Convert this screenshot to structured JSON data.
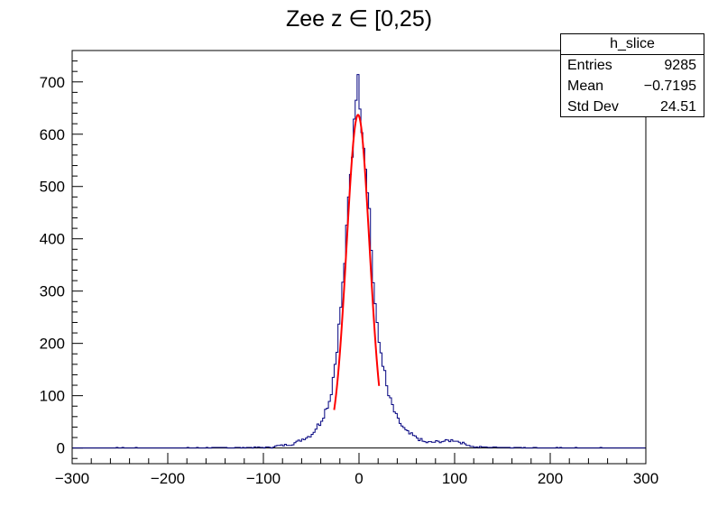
{
  "chart_data": {
    "type": "histogram",
    "title": "Zee z ∈ [0,25)",
    "xlabel": "",
    "ylabel": "",
    "xlim": [
      -300,
      300
    ],
    "ylim": [
      -30,
      760
    ],
    "x_ticks": [
      -300,
      -200,
      -100,
      0,
      100,
      200,
      300
    ],
    "x_tick_labels": [
      "−300",
      "−200",
      "−100",
      "0",
      "100",
      "200",
      "300"
    ],
    "y_ticks": [
      0,
      100,
      200,
      300,
      400,
      500,
      600,
      700
    ],
    "y_tick_labels": [
      "0",
      "100",
      "200",
      "300",
      "400",
      "500",
      "600",
      "700"
    ],
    "histogram": {
      "name": "h_slice",
      "color": "#00007f",
      "bin_width": 2,
      "x_start": -300,
      "x_end": 300,
      "peaks": [
        {
          "x": -90,
          "y": 3
        },
        {
          "x": -70,
          "y": 7
        },
        {
          "x": -50,
          "y": 25
        },
        {
          "x": -40,
          "y": 50
        },
        {
          "x": -30,
          "y": 95
        },
        {
          "x": -24,
          "y": 175
        },
        {
          "x": -20,
          "y": 250
        },
        {
          "x": -16,
          "y": 330
        },
        {
          "x": -12,
          "y": 440
        },
        {
          "x": -10,
          "y": 505
        },
        {
          "x": -8,
          "y": 530
        },
        {
          "x": -6,
          "y": 600
        },
        {
          "x": -4,
          "y": 670
        },
        {
          "x": -2,
          "y": 695
        },
        {
          "x": 0,
          "y": 700
        },
        {
          "x": 2,
          "y": 630
        },
        {
          "x": 4,
          "y": 610
        },
        {
          "x": 6,
          "y": 560
        },
        {
          "x": 8,
          "y": 520
        },
        {
          "x": 10,
          "y": 490
        },
        {
          "x": 12,
          "y": 420
        },
        {
          "x": 14,
          "y": 340
        },
        {
          "x": 16,
          "y": 300
        },
        {
          "x": 18,
          "y": 250
        },
        {
          "x": 20,
          "y": 210
        },
        {
          "x": 24,
          "y": 175
        },
        {
          "x": 30,
          "y": 105
        },
        {
          "x": 40,
          "y": 55
        },
        {
          "x": 50,
          "y": 30
        },
        {
          "x": 70,
          "y": 10
        },
        {
          "x": 100,
          "y": 15
        },
        {
          "x": 120,
          "y": 2
        }
      ]
    },
    "fit": {
      "type": "gaussian",
      "color": "#ff0000",
      "amplitude": 637,
      "mean": -1,
      "sigma": 12,
      "range": [
        -26,
        21
      ]
    },
    "stats_box": {
      "name": "h_slice",
      "entries_label": "Entries",
      "entries": "9285",
      "mean_label": "Mean",
      "mean": "−0.7195",
      "stddev_label": "Std Dev",
      "stddev": "24.51"
    }
  }
}
